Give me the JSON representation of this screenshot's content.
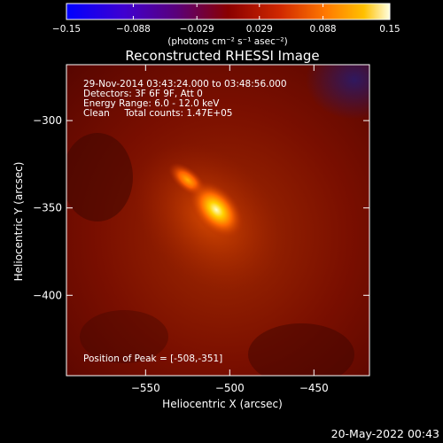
{
  "chart_data": {
    "type": "heatmap",
    "title": "Reconstructed RHESSI Image",
    "xlabel": "Heliocentric X (arcsec)",
    "ylabel": "Heliocentric Y (arcsec)",
    "xlim": [
      -597,
      -417
    ],
    "ylim": [
      -446,
      -268
    ],
    "x_ticks": [
      -550,
      -500,
      -450
    ],
    "x_tick_labels": [
      "−550",
      "−500",
      "−450"
    ],
    "y_ticks": [
      -300,
      -350,
      -400
    ],
    "y_tick_labels": [
      "−300",
      "−350",
      "−400"
    ],
    "colorbar": {
      "range": [
        -0.15,
        0.15
      ],
      "colormap": "heat",
      "ticks": [
        -0.15,
        -0.088,
        -0.029,
        0.029,
        0.088,
        0.15
      ],
      "tick_labels": [
        "−0.15",
        "−0.088",
        "−0.029",
        "0.029",
        "0.088",
        "0.15"
      ],
      "units_label": "(photons cm⁻² s⁻¹ asec⁻²)"
    },
    "sources": [
      {
        "x": -508,
        "y": -351,
        "peak": 0.15
      },
      {
        "x": -525,
        "y": -334,
        "peak": 0.1
      }
    ],
    "annotations": [
      "29-Nov-2014 03:43:24.000 to 03:48:56.000",
      "Detectors: 3F 6F 9F, Att 0",
      "Energy Range: 6.0 - 12.0 keV",
      "Clean     Total counts: 1.47E+05"
    ],
    "peak_text": "Position of Peak = [-508,-351]",
    "grid": false
  },
  "footer": {
    "date": "20-May-2022 00:43"
  }
}
